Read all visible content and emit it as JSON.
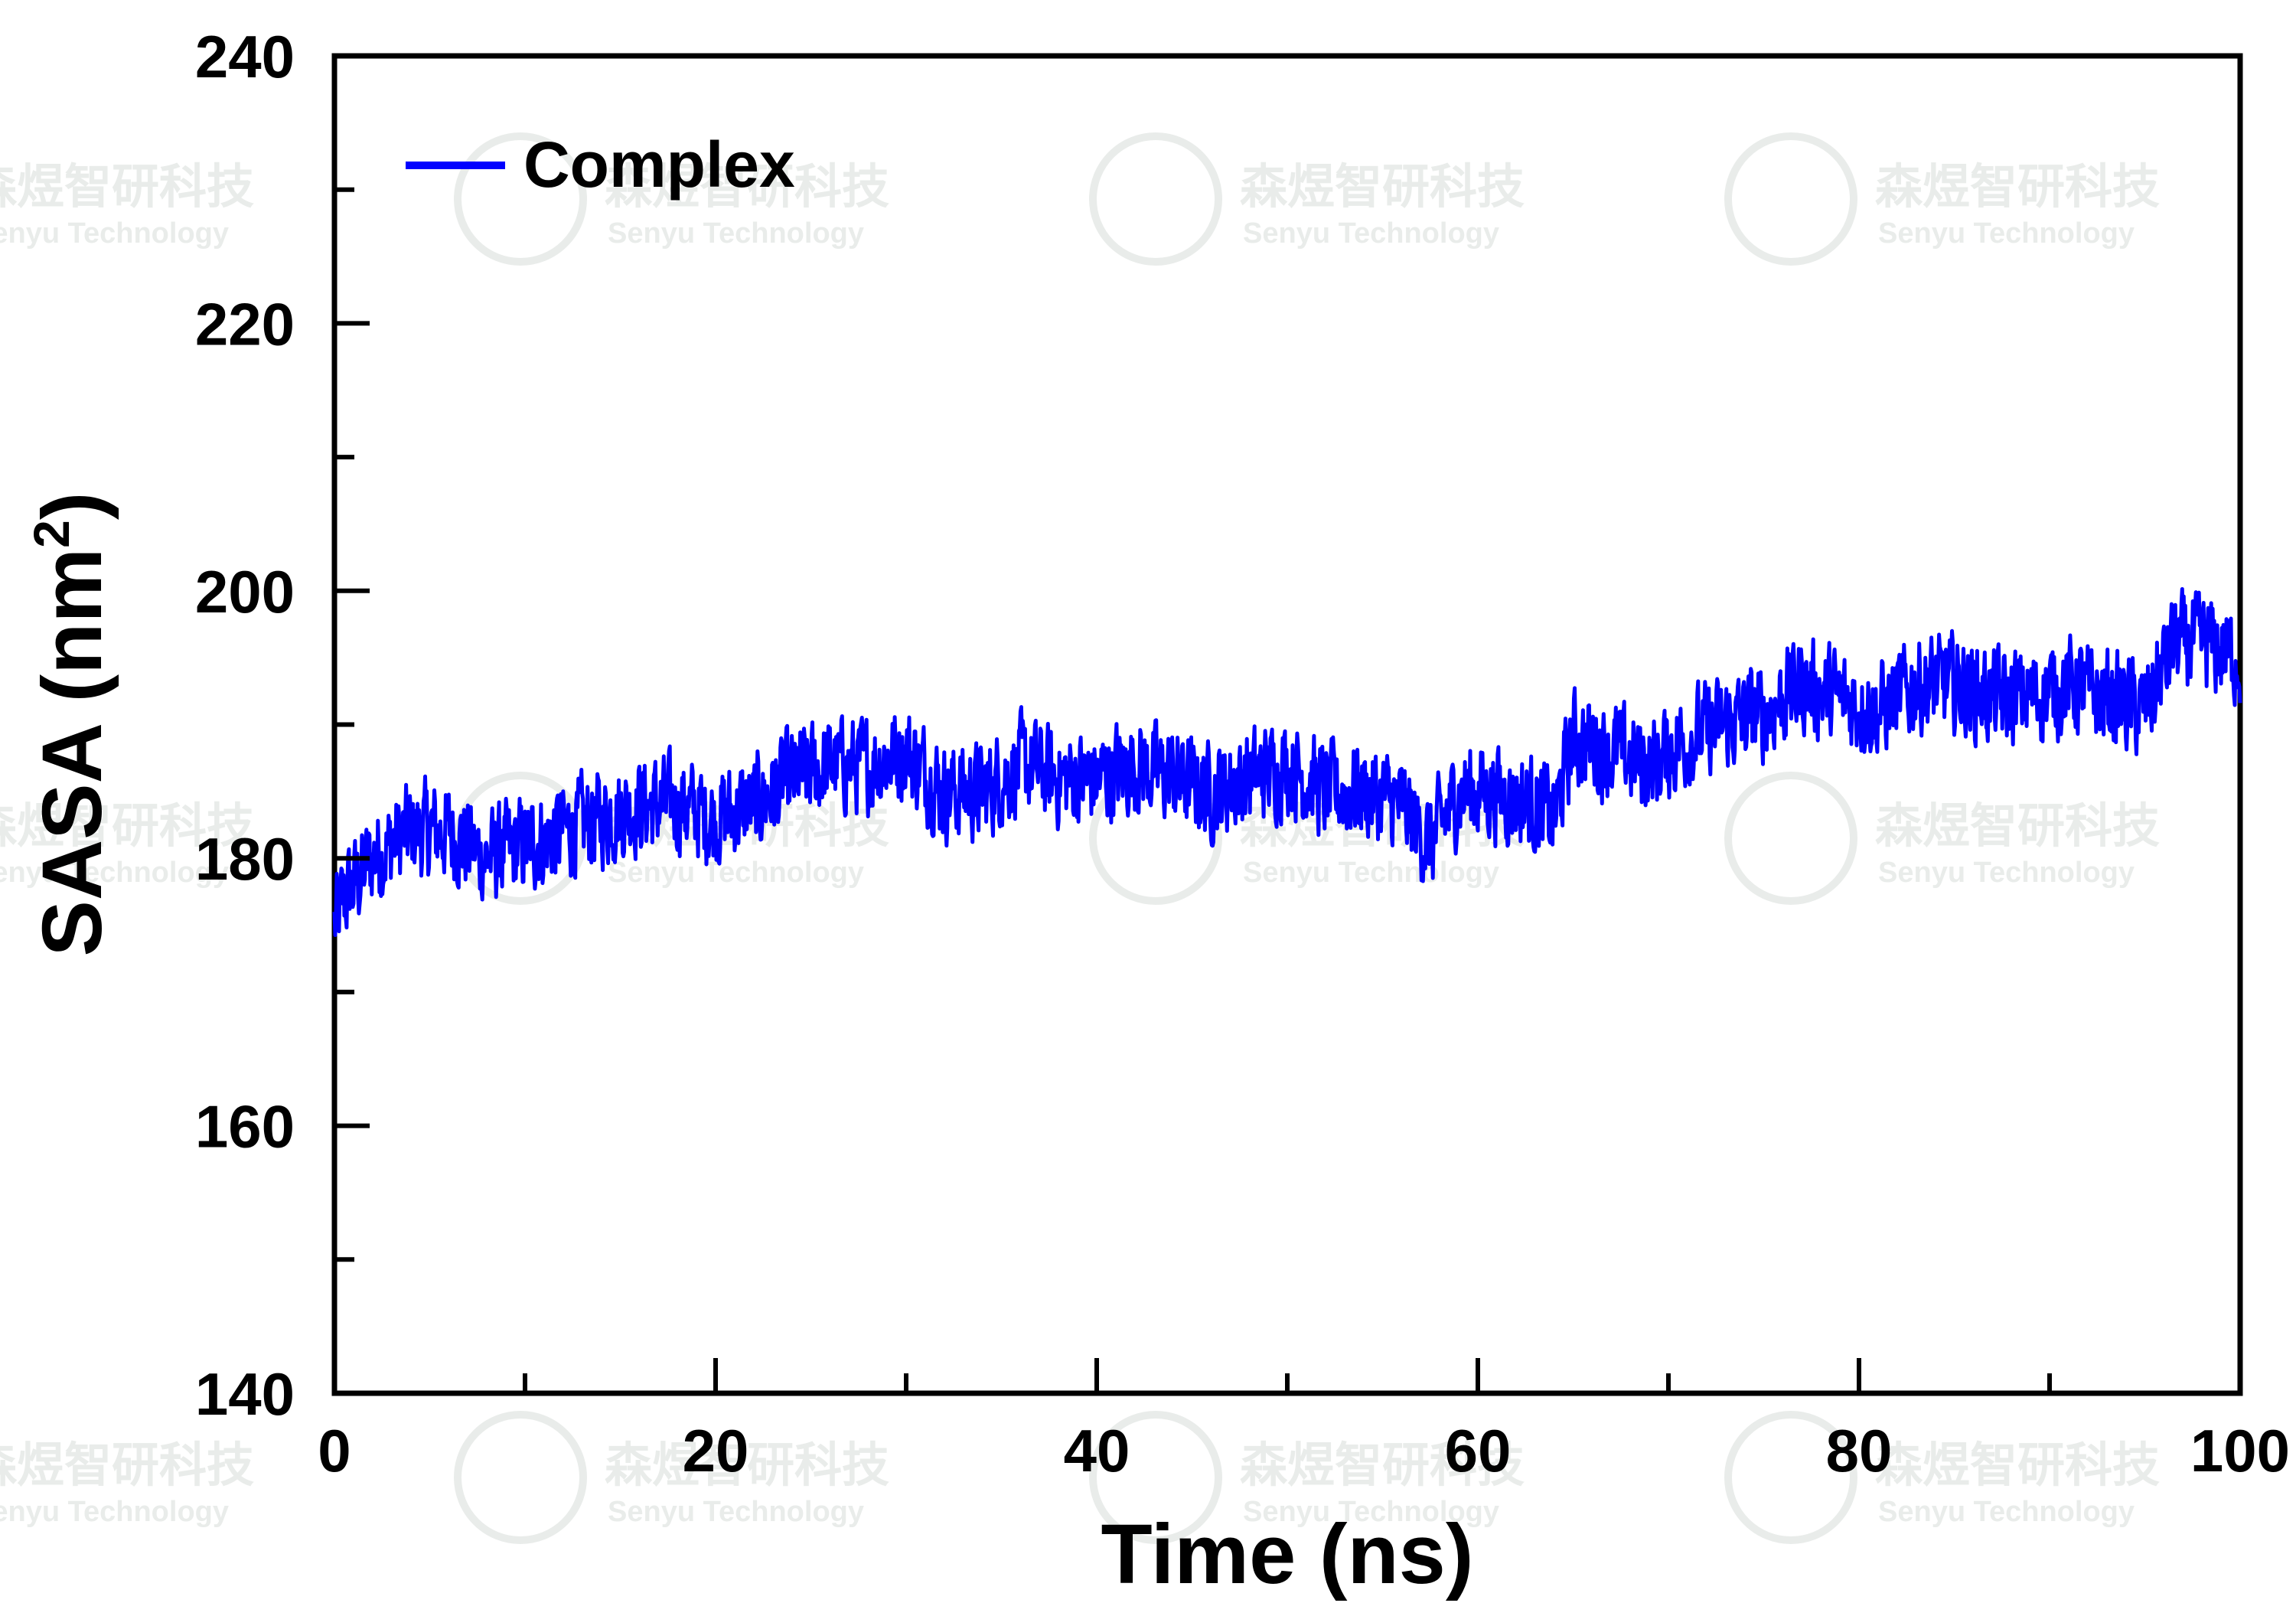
{
  "chart_data": {
    "type": "line",
    "xlabel": "Time (ns)",
    "ylabel_main": "SASA (nm",
    "ylabel_sup": "2",
    "ylabel_close": ")",
    "xlim": [
      0,
      100
    ],
    "ylim": [
      140,
      240
    ],
    "x_ticks": [
      0,
      20,
      40,
      60,
      80,
      100
    ],
    "x_tick_labels": [
      "0",
      "20",
      "40",
      "60",
      "80",
      "100"
    ],
    "y_ticks": [
      140,
      160,
      180,
      200,
      220,
      240
    ],
    "y_tick_labels": [
      "140",
      "160",
      "180",
      "200",
      "220",
      "240"
    ],
    "x_minor_step": 10,
    "y_minor_step": 10,
    "grid": false,
    "legend_position": "top-left",
    "series": [
      {
        "name": "Complex",
        "color": "#0000ff",
        "trend_x": [
          0,
          0.5,
          2,
          4,
          6,
          8,
          10,
          12,
          14,
          16,
          18,
          20,
          22,
          24,
          26,
          28,
          30,
          32,
          34,
          36,
          38,
          40,
          42,
          44,
          46,
          48,
          50,
          52,
          54,
          56,
          57.5,
          59,
          61,
          63,
          64,
          65,
          67,
          69,
          71,
          73,
          75,
          77,
          79,
          81,
          83,
          85,
          87,
          89,
          91,
          93,
          95,
          96.5,
          98,
          100
        ],
        "trend_y": [
          175,
          177,
          180,
          182,
          182,
          180,
          181,
          182,
          183,
          184,
          184,
          183,
          184,
          186,
          187,
          187,
          188,
          185,
          185,
          187,
          186,
          186,
          187,
          186,
          185,
          186,
          187,
          185,
          185,
          184,
          181,
          185,
          185,
          184,
          183,
          189,
          188,
          187,
          189,
          190,
          191,
          193,
          192,
          191,
          193,
          193,
          192,
          192,
          193,
          192,
          191,
          196,
          196,
          195
        ],
        "noise_amplitude": 3.2
      }
    ]
  },
  "watermark": {
    "cn": "森煜智研科技",
    "en": "Senyu Technology",
    "color": "#e9ecea"
  }
}
